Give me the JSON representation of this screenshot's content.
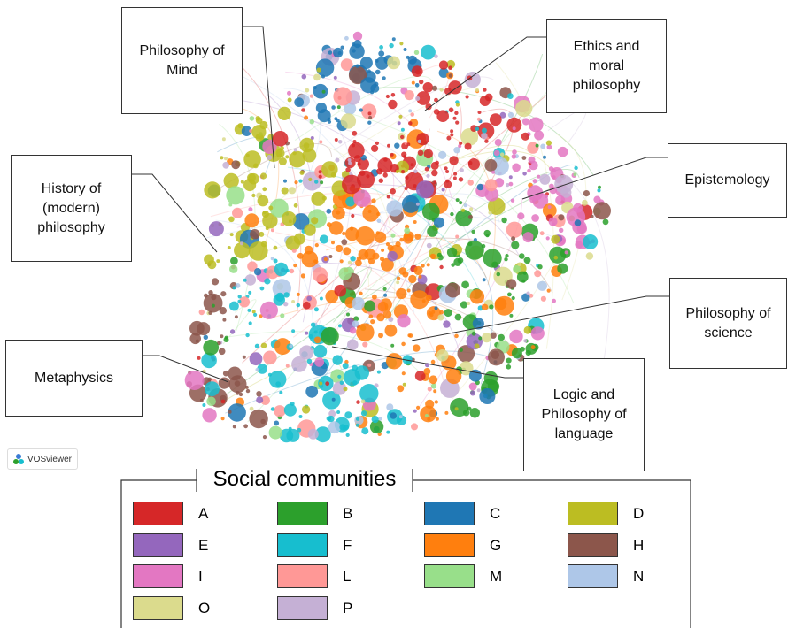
{
  "callouts": [
    {
      "label": "Philosophy of Mind"
    },
    {
      "label": "Ethics and moral philosophy"
    },
    {
      "label": "History of (modern) philosophy"
    },
    {
      "label": "Epistemology"
    },
    {
      "label": "Philosophy of science"
    },
    {
      "label": "Metaphysics"
    },
    {
      "label": "Logic and Philosophy of language"
    }
  ],
  "logo": "VOSviewer",
  "legend": {
    "title": "Social communities",
    "items": [
      {
        "label": "A",
        "color": "#d62728"
      },
      {
        "label": "B",
        "color": "#2ca02c"
      },
      {
        "label": "C",
        "color": "#1f77b4"
      },
      {
        "label": "D",
        "color": "#bcbd22"
      },
      {
        "label": "E",
        "color": "#9467bd"
      },
      {
        "label": "F",
        "color": "#17becf"
      },
      {
        "label": "G",
        "color": "#ff7f0e"
      },
      {
        "label": "H",
        "color": "#8c564b"
      },
      {
        "label": "I",
        "color": "#e377c2"
      },
      {
        "label": "L",
        "color": "#ff9896"
      },
      {
        "label": "M",
        "color": "#98df8a"
      },
      {
        "label": "N",
        "color": "#aec7e8"
      },
      {
        "label": "O",
        "color": "#dbdb8d"
      },
      {
        "label": "P",
        "color": "#c5b0d5"
      }
    ]
  }
}
